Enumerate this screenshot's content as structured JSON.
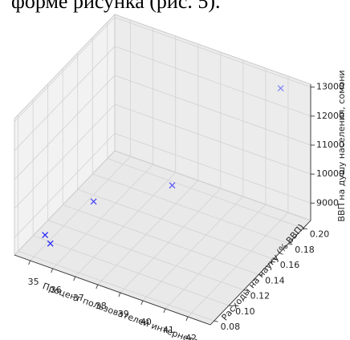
{
  "context_text": "форме рисунка (рис. 5).",
  "chart_data": {
    "type": "scatter3d",
    "x": [
      35.0,
      35.4,
      36.0,
      38.5,
      42.0
    ],
    "y": [
      0.095,
      0.09,
      0.13,
      0.16,
      0.2
    ],
    "z": [
      8750,
      8700,
      9250,
      9700,
      12950
    ],
    "color": "#0000ff",
    "xlabel": "Процент пользователей интернета",
    "ylabel": "Расходы на науку (% ВВП)",
    "zlabel": "ВВП на душу населения, сомони",
    "xlim": [
      34.3,
      43.0
    ],
    "ylim": [
      0.075,
      0.21
    ],
    "zlim": [
      8400,
      13100
    ],
    "xticks": [
      35,
      36,
      37,
      38,
      39,
      40,
      41,
      42
    ],
    "yticks": [
      0.08,
      {
        "value": 0.1,
        "label": "0.10"
      },
      0.12,
      0.14,
      0.16,
      0.18,
      {
        "value": 0.2,
        "label": "0.20"
      }
    ],
    "zticks": [
      9000,
      10000,
      11000,
      12000,
      13000
    ],
    "grid": true
  }
}
